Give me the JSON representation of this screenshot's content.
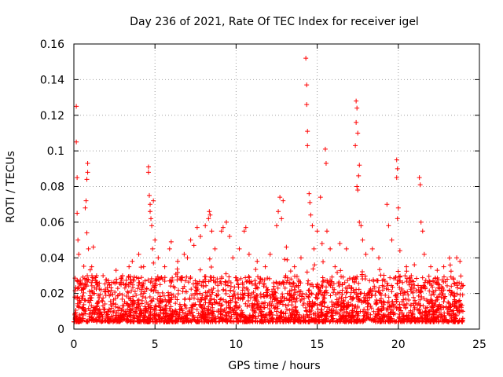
{
  "chart_data": {
    "type": "scatter",
    "title": "Day 236 of 2021, Rate Of TEC Index for receiver igel",
    "xlabel": "GPS time / hours",
    "ylabel": "ROTI / TECUs",
    "xlim": [
      0,
      25
    ],
    "ylim": [
      0,
      0.16
    ],
    "xticks": [
      "0",
      "5",
      "10",
      "15",
      "20",
      "25"
    ],
    "yticks": [
      "0",
      "0.02",
      "0.04",
      "0.06",
      "0.08",
      "0.1",
      "0.12",
      "0.14",
      "0.16"
    ],
    "grid": true,
    "marker": "plus",
    "color": "#ff0000",
    "series": [
      {
        "points": [
          [
            0.15,
            0.125
          ],
          [
            0.15,
            0.105
          ],
          [
            0.2,
            0.085
          ],
          [
            0.2,
            0.065
          ],
          [
            0.25,
            0.05
          ],
          [
            0.3,
            0.042
          ],
          [
            0.7,
            0.068
          ],
          [
            0.75,
            0.072
          ],
          [
            0.8,
            0.084
          ],
          [
            0.85,
            0.093
          ],
          [
            0.85,
            0.088
          ],
          [
            0.8,
            0.054
          ],
          [
            0.9,
            0.045
          ],
          [
            1.1,
            0.035
          ],
          [
            1.2,
            0.046
          ],
          [
            1.4,
            0.03
          ],
          [
            1.8,
            0.03
          ],
          [
            2.2,
            0.025
          ],
          [
            2.6,
            0.033
          ],
          [
            3.0,
            0.03
          ],
          [
            3.4,
            0.035
          ],
          [
            3.6,
            0.038
          ],
          [
            4.0,
            0.042
          ],
          [
            4.3,
            0.035
          ],
          [
            4.6,
            0.091
          ],
          [
            4.6,
            0.088
          ],
          [
            4.65,
            0.075
          ],
          [
            4.7,
            0.07
          ],
          [
            4.7,
            0.066
          ],
          [
            4.75,
            0.062
          ],
          [
            4.8,
            0.058
          ],
          [
            4.85,
            0.045
          ],
          [
            4.9,
            0.072
          ],
          [
            5.0,
            0.05
          ],
          [
            5.2,
            0.04
          ],
          [
            5.6,
            0.035
          ],
          [
            5.9,
            0.045
          ],
          [
            6.0,
            0.049
          ],
          [
            6.4,
            0.038
          ],
          [
            6.8,
            0.042
          ],
          [
            7.0,
            0.04
          ],
          [
            7.2,
            0.05
          ],
          [
            7.4,
            0.047
          ],
          [
            7.6,
            0.057
          ],
          [
            7.8,
            0.052
          ],
          [
            8.1,
            0.058
          ],
          [
            8.3,
            0.062
          ],
          [
            8.35,
            0.066
          ],
          [
            8.4,
            0.064
          ],
          [
            8.5,
            0.055
          ],
          [
            8.7,
            0.045
          ],
          [
            9.1,
            0.055
          ],
          [
            9.2,
            0.057
          ],
          [
            9.4,
            0.06
          ],
          [
            9.6,
            0.052
          ],
          [
            9.8,
            0.04
          ],
          [
            10.2,
            0.045
          ],
          [
            10.5,
            0.055
          ],
          [
            10.6,
            0.057
          ],
          [
            10.8,
            0.042
          ],
          [
            11.3,
            0.038
          ],
          [
            11.8,
            0.035
          ],
          [
            12.1,
            0.042
          ],
          [
            12.5,
            0.058
          ],
          [
            12.6,
            0.066
          ],
          [
            12.7,
            0.074
          ],
          [
            12.8,
            0.062
          ],
          [
            12.9,
            0.072
          ],
          [
            13.1,
            0.046
          ],
          [
            13.6,
            0.035
          ],
          [
            14.0,
            0.04
          ],
          [
            14.3,
            0.152
          ],
          [
            14.35,
            0.137
          ],
          [
            14.35,
            0.126
          ],
          [
            14.4,
            0.111
          ],
          [
            14.4,
            0.103
          ],
          [
            14.5,
            0.076
          ],
          [
            14.55,
            0.071
          ],
          [
            14.6,
            0.064
          ],
          [
            14.7,
            0.058
          ],
          [
            14.8,
            0.045
          ],
          [
            15.0,
            0.055
          ],
          [
            15.2,
            0.074
          ],
          [
            15.3,
            0.048
          ],
          [
            15.5,
            0.101
          ],
          [
            15.55,
            0.093
          ],
          [
            15.6,
            0.055
          ],
          [
            15.8,
            0.045
          ],
          [
            16.1,
            0.035
          ],
          [
            16.4,
            0.048
          ],
          [
            16.8,
            0.045
          ],
          [
            17.4,
            0.128
          ],
          [
            17.45,
            0.124
          ],
          [
            17.4,
            0.116
          ],
          [
            17.5,
            0.11
          ],
          [
            17.35,
            0.103
          ],
          [
            17.6,
            0.092
          ],
          [
            17.55,
            0.086
          ],
          [
            17.45,
            0.08
          ],
          [
            17.5,
            0.078
          ],
          [
            17.6,
            0.06
          ],
          [
            17.7,
            0.058
          ],
          [
            17.8,
            0.05
          ],
          [
            18.0,
            0.042
          ],
          [
            18.4,
            0.045
          ],
          [
            18.8,
            0.04
          ],
          [
            19.3,
            0.07
          ],
          [
            19.4,
            0.058
          ],
          [
            19.6,
            0.05
          ],
          [
            19.9,
            0.095
          ],
          [
            19.95,
            0.09
          ],
          [
            19.9,
            0.085
          ],
          [
            20.0,
            0.068
          ],
          [
            19.95,
            0.062
          ],
          [
            20.1,
            0.044
          ],
          [
            20.5,
            0.035
          ],
          [
            20.8,
            0.03
          ],
          [
            21.3,
            0.085
          ],
          [
            21.35,
            0.081
          ],
          [
            21.4,
            0.06
          ],
          [
            21.5,
            0.055
          ],
          [
            21.6,
            0.042
          ],
          [
            22.0,
            0.035
          ],
          [
            22.4,
            0.033
          ],
          [
            22.8,
            0.035
          ],
          [
            23.2,
            0.036
          ],
          [
            23.6,
            0.04
          ],
          [
            23.8,
            0.038
          ]
        ]
      }
    ]
  }
}
